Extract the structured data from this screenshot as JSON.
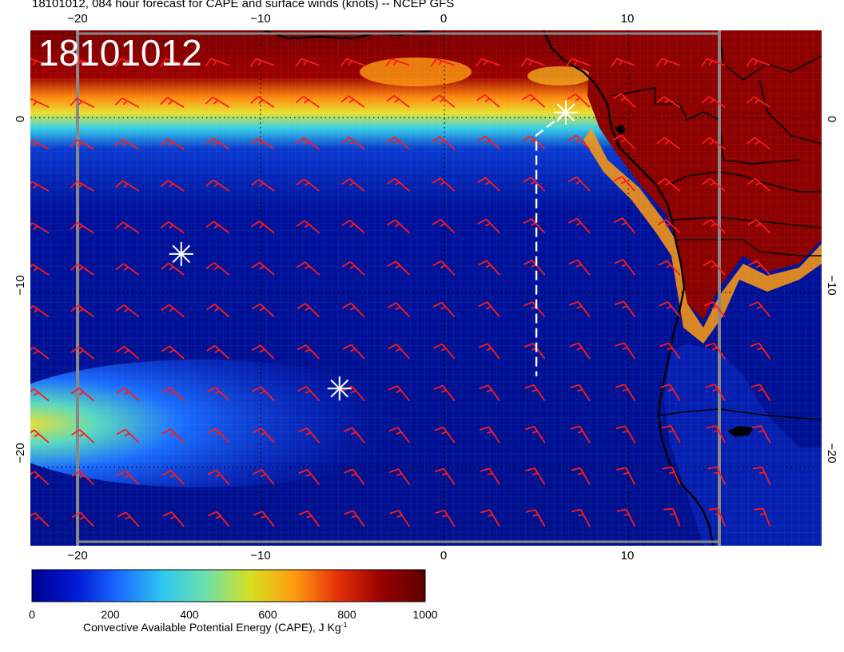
{
  "title": "18101012, 084 hour forecast for CAPE and surface winds (knots) -- NCEP GFS",
  "date_stamp": "18101012",
  "map": {
    "lon_ticks_top": [
      "−20",
      "−10",
      "0",
      "10"
    ],
    "lon_ticks_bottom": [
      "−20",
      "−10",
      "0",
      "10"
    ],
    "lat_ticks_left": [
      "0",
      "−10",
      "−20"
    ],
    "lat_ticks_right": [
      "0",
      "−10",
      "−20"
    ],
    "lon_range": [
      -22.5,
      20.5
    ],
    "lat_range": [
      5,
      -24.5
    ],
    "wind_barb_color": "#ff1a1a",
    "coastline_color": "#000000",
    "graticule_style": "dotted"
  },
  "markers": [
    {
      "name": "star-1",
      "lon": -14.3,
      "lat": -7.8
    },
    {
      "name": "star-2",
      "lon": -5.7,
      "lat": -15.5
    },
    {
      "name": "star-3",
      "lon": 6.6,
      "lat": 0.3
    }
  ],
  "track": {
    "points": [
      [
        6.6,
        0.3
      ],
      [
        5.0,
        -1.0
      ],
      [
        5.0,
        -14.8
      ]
    ],
    "color": "#ffffff",
    "style": "dashed"
  },
  "colorbar": {
    "ticks": [
      "0",
      "200",
      "400",
      "600",
      "800",
      "1000"
    ],
    "title": "Convective Available Potential Energy (CAPE), J Kg",
    "title_sup": "-1",
    "min": 0,
    "max": 1000,
    "colors": [
      "#00008f",
      "#0019d6",
      "#1a6cff",
      "#2ec8f0",
      "#6fe0a8",
      "#d6e020",
      "#ff9b10",
      "#e6300a",
      "#990000",
      "#5c0000"
    ]
  }
}
